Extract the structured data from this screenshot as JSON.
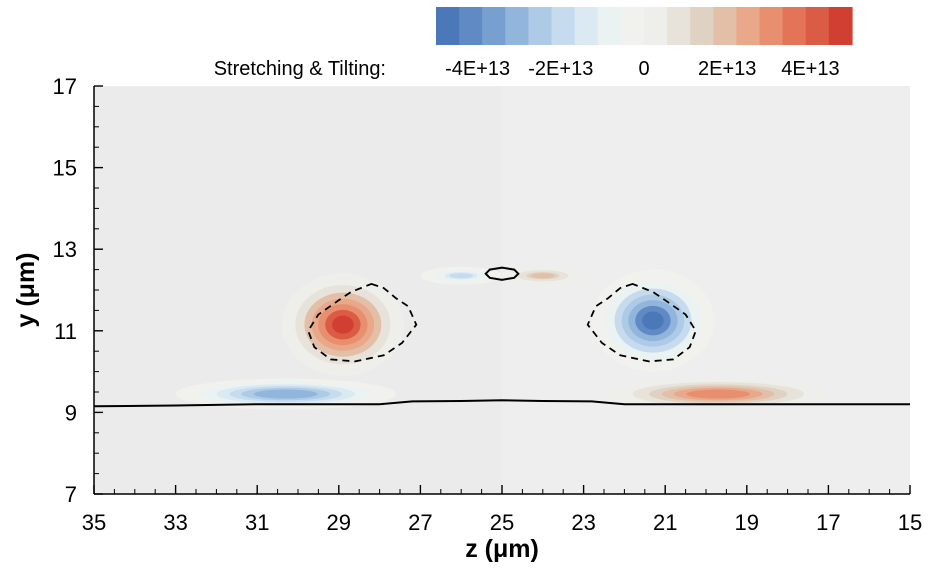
{
  "chart_data": {
    "type": "contour",
    "xlabel": "z (μm)",
    "ylabel": "y (μm)",
    "xlim": [
      35,
      15
    ],
    "ylim": [
      7,
      17
    ],
    "x_ticks": [
      35,
      33,
      31,
      29,
      27,
      25,
      23,
      21,
      19,
      17,
      15
    ],
    "y_ticks": [
      7,
      9,
      11,
      13,
      15,
      17
    ],
    "colorbar": {
      "title": "Stretching & Tilting:",
      "range": [
        -50000000000000.0,
        50000000000000.0
      ],
      "tick_values": [
        -40000000000000.0,
        -20000000000000.0,
        0,
        20000000000000.0,
        40000000000000.0
      ],
      "tick_labels": [
        "-4E+13",
        "-2E+13",
        "0",
        "2E+13",
        "4E+13"
      ],
      "colors": [
        "#4a78b8",
        "#5f8ac4",
        "#77a0d0",
        "#92b5dc",
        "#adcae6",
        "#c6dbee",
        "#dbe9f2",
        "#eaf2f2",
        "#f1f2ee",
        "#eeeeea",
        "#e8e3da",
        "#dfd2c2",
        "#e2bfa6",
        "#e8a889",
        "#e88f6f",
        "#e37458",
        "#db5c45",
        "#d13f33"
      ]
    },
    "features": [
      {
        "kind": "blob",
        "z": 28.9,
        "y": 11.15,
        "rz": 1.5,
        "ry": 1.25,
        "value": 50000000000000.0
      },
      {
        "kind": "blob",
        "z": 21.3,
        "y": 11.25,
        "rz": 1.5,
        "ry": 1.25,
        "value": -50000000000000.0
      },
      {
        "kind": "blob",
        "z": 30.3,
        "y": 9.45,
        "rz": 2.7,
        "ry": 0.38,
        "value": -35000000000000.0
      },
      {
        "kind": "blob",
        "z": 19.7,
        "y": 9.45,
        "rz": 2.7,
        "ry": 0.38,
        "value": 35000000000000.0
      },
      {
        "kind": "blob",
        "z": 26.0,
        "y": 12.35,
        "rz": 1.0,
        "ry": 0.22,
        "value": -22000000000000.0
      },
      {
        "kind": "blob",
        "z": 24.0,
        "y": 12.35,
        "rz": 1.0,
        "ry": 0.22,
        "value": 22000000000000.0
      }
    ],
    "solid_line": [
      [
        35,
        9.15
      ],
      [
        33,
        9.17
      ],
      [
        31,
        9.2
      ],
      [
        30,
        9.2
      ],
      [
        29,
        9.2
      ],
      [
        28,
        9.2
      ],
      [
        27.2,
        9.27
      ],
      [
        26,
        9.28
      ],
      [
        25,
        9.3
      ],
      [
        24,
        9.28
      ],
      [
        22.8,
        9.27
      ],
      [
        22,
        9.2
      ],
      [
        21,
        9.2
      ],
      [
        19,
        9.2
      ],
      [
        17,
        9.2
      ],
      [
        15,
        9.2
      ]
    ],
    "solid_loop": [
      [
        25.4,
        12.4
      ],
      [
        25.3,
        12.5
      ],
      [
        25.0,
        12.55
      ],
      [
        24.7,
        12.5
      ],
      [
        24.6,
        12.4
      ],
      [
        24.7,
        12.3
      ],
      [
        25.0,
        12.25
      ],
      [
        25.3,
        12.3
      ],
      [
        25.4,
        12.4
      ]
    ],
    "dashed_loops": [
      [
        [
          28.2,
          12.15
        ],
        [
          27.9,
          12.05
        ],
        [
          27.6,
          11.8
        ],
        [
          27.3,
          11.6
        ],
        [
          27.1,
          11.15
        ],
        [
          27.45,
          10.7
        ],
        [
          27.9,
          10.4
        ],
        [
          28.6,
          10.25
        ],
        [
          29.2,
          10.3
        ],
        [
          29.6,
          10.6
        ],
        [
          29.75,
          11.0
        ],
        [
          29.5,
          11.4
        ],
        [
          29.0,
          11.75
        ],
        [
          28.7,
          11.95
        ],
        [
          28.2,
          12.15
        ]
      ],
      [
        [
          21.8,
          12.15
        ],
        [
          22.1,
          12.05
        ],
        [
          22.4,
          11.8
        ],
        [
          22.7,
          11.6
        ],
        [
          22.9,
          11.15
        ],
        [
          22.55,
          10.7
        ],
        [
          22.1,
          10.4
        ],
        [
          21.4,
          10.25
        ],
        [
          20.8,
          10.3
        ],
        [
          20.4,
          10.6
        ],
        [
          20.25,
          11.0
        ],
        [
          20.5,
          11.4
        ],
        [
          21.0,
          11.75
        ],
        [
          21.3,
          11.95
        ],
        [
          21.8,
          12.15
        ]
      ]
    ]
  }
}
